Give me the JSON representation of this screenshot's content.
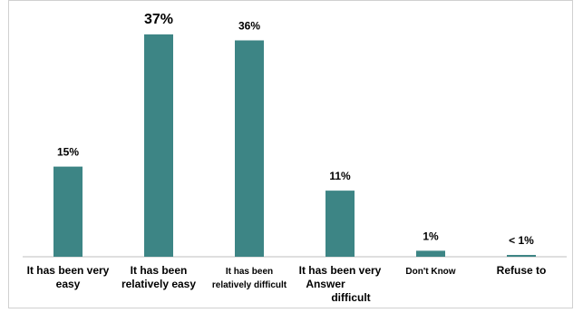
{
  "chart_data": {
    "type": "bar",
    "categories": [
      [
        "It has been very",
        "easy"
      ],
      [
        "It has been",
        "relatively easy"
      ],
      [
        "It has been",
        "relatively difficult"
      ],
      [
        "It has been very",
        "Answer",
        "difficult"
      ],
      [
        "Don't Know"
      ],
      [
        "Refuse to"
      ]
    ],
    "values": [
      15,
      37,
      36,
      11,
      1,
      0.3
    ],
    "data_labels": [
      "15%",
      "37%",
      "36%",
      "11%",
      "1%",
      "< 1%"
    ],
    "bar_color": "#3d8585",
    "axis_color": "#bfbfbf",
    "ylim": [
      0,
      40
    ],
    "grid": false,
    "legend": "none",
    "title": "",
    "xlabel": "",
    "ylabel": ""
  }
}
